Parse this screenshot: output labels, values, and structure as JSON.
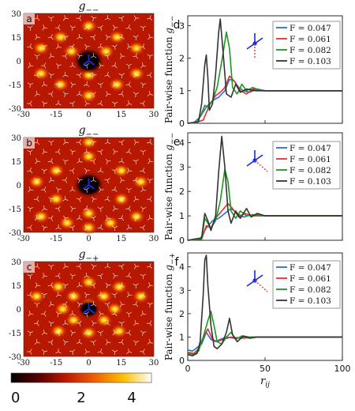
{
  "heatmap_panels": [
    {
      "letter": "a",
      "title": "g−−",
      "variant": "ring"
    },
    {
      "letter": "b",
      "title": "g−−",
      "variant": "hex"
    },
    {
      "letter": "c",
      "title": "g−+",
      "variant": "cross"
    }
  ],
  "heatmap_axis": {
    "x_ticks": [
      "-30",
      "-15",
      "0",
      "15",
      "30"
    ],
    "y_ticks": [
      "30",
      "15",
      "0",
      "-15",
      "-30"
    ]
  },
  "colorbar": {
    "ticks": [
      "0",
      "2",
      "4"
    ],
    "colors": [
      "#000000",
      "#5a0000",
      "#c01a00",
      "#f06000",
      "#ffc000",
      "#ffffff"
    ]
  },
  "chart_data": [
    {
      "type": "line",
      "letter": "d",
      "ylabel": "Pair-wise function g−−",
      "xlabel": "r_ij",
      "xlim": [
        0,
        100
      ],
      "ylim": [
        0,
        3.3
      ],
      "yticks": [
        0,
        1,
        2,
        3
      ],
      "xticks": [
        0,
        50,
        100
      ],
      "series": [
        {
          "name": "F = 0.047",
          "color": "#2b6cd6",
          "points": [
            [
              0,
              0
            ],
            [
              4,
              0.02
            ],
            [
              8,
              0.2
            ],
            [
              12,
              0.5
            ],
            [
              16,
              0.7
            ],
            [
              20,
              0.8
            ],
            [
              24,
              1.0
            ],
            [
              27,
              1.35
            ],
            [
              30,
              1.3
            ],
            [
              33,
              1.1
            ],
            [
              36,
              1.0
            ],
            [
              40,
              0.95
            ],
            [
              45,
              1.05
            ],
            [
              50,
              1.0
            ],
            [
              60,
              1.0
            ],
            [
              80,
              1.0
            ],
            [
              100,
              1.0
            ]
          ]
        },
        {
          "name": "F = 0.061",
          "color": "#e03030",
          "points": [
            [
              0,
              0
            ],
            [
              5,
              0.02
            ],
            [
              10,
              0.1
            ],
            [
              14,
              0.55
            ],
            [
              18,
              0.85
            ],
            [
              21,
              0.95
            ],
            [
              24,
              1.1
            ],
            [
              27,
              1.45
            ],
            [
              30,
              1.3
            ],
            [
              34,
              1.0
            ],
            [
              38,
              0.9
            ],
            [
              42,
              1.05
            ],
            [
              50,
              1.0
            ],
            [
              60,
              1.0
            ],
            [
              80,
              1.0
            ],
            [
              100,
              1.0
            ]
          ]
        },
        {
          "name": "F = 0.082",
          "color": "#1a9a1a",
          "points": [
            [
              0,
              0
            ],
            [
              6,
              0.02
            ],
            [
              9,
              0.3
            ],
            [
              11,
              0.55
            ],
            [
              13,
              0.5
            ],
            [
              16,
              0.7
            ],
            [
              19,
              1.1
            ],
            [
              22,
              1.9
            ],
            [
              25,
              2.8
            ],
            [
              27,
              2.3
            ],
            [
              29,
              1.1
            ],
            [
              32,
              0.9
            ],
            [
              35,
              1.2
            ],
            [
              38,
              1.0
            ],
            [
              42,
              1.1
            ],
            [
              48,
              1.0
            ],
            [
              60,
              1.0
            ],
            [
              80,
              1.0
            ],
            [
              100,
              1.0
            ]
          ]
        },
        {
          "name": "F = 0.103",
          "color": "#333333",
          "points": [
            [
              0,
              0
            ],
            [
              7,
              0.05
            ],
            [
              9,
              0.6
            ],
            [
              11,
              1.8
            ],
            [
              12,
              2.1
            ],
            [
              13,
              1.4
            ],
            [
              14,
              0.4
            ],
            [
              16,
              0.6
            ],
            [
              18,
              1.5
            ],
            [
              20,
              2.8
            ],
            [
              21,
              3.2
            ],
            [
              23,
              2.1
            ],
            [
              25,
              0.9
            ],
            [
              28,
              0.8
            ],
            [
              31,
              1.2
            ],
            [
              34,
              0.95
            ],
            [
              38,
              1.05
            ],
            [
              44,
              1.0
            ],
            [
              60,
              1.0
            ],
            [
              80,
              1.0
            ],
            [
              100,
              1.0
            ]
          ]
        }
      ]
    },
    {
      "type": "line",
      "letter": "e",
      "ylabel": "Pair-wise function g−−",
      "xlabel": "r_ij",
      "xlim": [
        0,
        100
      ],
      "ylim": [
        0,
        4.4
      ],
      "yticks": [
        0,
        1,
        2,
        3,
        4
      ],
      "xticks": [
        0,
        50,
        100
      ],
      "series": [
        {
          "name": "F = 0.047",
          "color": "#2b6cd6",
          "points": [
            [
              0,
              0
            ],
            [
              8,
              0.05
            ],
            [
              12,
              0.5
            ],
            [
              16,
              0.8
            ],
            [
              20,
              0.9
            ],
            [
              24,
              1.1
            ],
            [
              28,
              1.3
            ],
            [
              32,
              1.1
            ],
            [
              36,
              0.95
            ],
            [
              42,
              1.05
            ],
            [
              50,
              1.0
            ],
            [
              60,
              1.0
            ],
            [
              80,
              1.0
            ],
            [
              100,
              1.0
            ]
          ]
        },
        {
          "name": "F = 0.061",
          "color": "#e03030",
          "points": [
            [
              0,
              0
            ],
            [
              9,
              0.05
            ],
            [
              12,
              0.6
            ],
            [
              15,
              0.5
            ],
            [
              18,
              0.9
            ],
            [
              22,
              1.2
            ],
            [
              26,
              1.5
            ],
            [
              29,
              1.3
            ],
            [
              33,
              0.95
            ],
            [
              37,
              1.1
            ],
            [
              42,
              1.0
            ],
            [
              50,
              1.0
            ],
            [
              60,
              1.0
            ],
            [
              80,
              1.0
            ],
            [
              100,
              1.0
            ]
          ]
        },
        {
          "name": "F = 0.082",
          "color": "#1a9a1a",
          "points": [
            [
              0,
              0
            ],
            [
              9,
              0.05
            ],
            [
              11,
              0.9
            ],
            [
              13,
              0.7
            ],
            [
              15,
              0.5
            ],
            [
              18,
              0.8
            ],
            [
              21,
              1.6
            ],
            [
              24,
              2.9
            ],
            [
              26,
              2.4
            ],
            [
              28,
              1.2
            ],
            [
              31,
              0.9
            ],
            [
              34,
              1.2
            ],
            [
              38,
              1.0
            ],
            [
              44,
              1.05
            ],
            [
              50,
              1.0
            ],
            [
              60,
              1.0
            ],
            [
              80,
              1.0
            ],
            [
              100,
              1.0
            ]
          ]
        },
        {
          "name": "F = 0.103",
          "color": "#333333",
          "points": [
            [
              0,
              0
            ],
            [
              9,
              0.1
            ],
            [
              11,
              1.1
            ],
            [
              13,
              0.8
            ],
            [
              15,
              0.4
            ],
            [
              18,
              1.0
            ],
            [
              20,
              2.8
            ],
            [
              22,
              4.25
            ],
            [
              24,
              3.0
            ],
            [
              26,
              1.2
            ],
            [
              28,
              0.7
            ],
            [
              31,
              1.2
            ],
            [
              34,
              0.9
            ],
            [
              38,
              1.3
            ],
            [
              41,
              0.95
            ],
            [
              45,
              1.1
            ],
            [
              50,
              1.0
            ],
            [
              60,
              1.0
            ],
            [
              80,
              1.0
            ],
            [
              100,
              1.0
            ]
          ]
        }
      ]
    },
    {
      "type": "line",
      "letter": "f",
      "ylabel": "Pair-wise function g−+",
      "xlabel": "r_ij",
      "xlim": [
        0,
        100
      ],
      "ylim": [
        0,
        4.6
      ],
      "yticks": [
        0,
        1,
        2,
        3,
        4
      ],
      "xticks": [
        0,
        50,
        100
      ],
      "series": [
        {
          "name": "F = 0.047",
          "color": "#2b6cd6",
          "points": [
            [
              0,
              0.45
            ],
            [
              3,
              0.4
            ],
            [
              6,
              0.55
            ],
            [
              9,
              0.7
            ],
            [
              12,
              1.2
            ],
            [
              15,
              0.9
            ],
            [
              18,
              0.8
            ],
            [
              21,
              0.9
            ],
            [
              25,
              1.0
            ],
            [
              30,
              0.95
            ],
            [
              40,
              1.0
            ],
            [
              60,
              1.0
            ],
            [
              80,
              1.0
            ],
            [
              100,
              1.0
            ]
          ]
        },
        {
          "name": "F = 0.061",
          "color": "#e03030",
          "points": [
            [
              0,
              0.35
            ],
            [
              4,
              0.3
            ],
            [
              7,
              0.5
            ],
            [
              10,
              1.0
            ],
            [
              13,
              1.35
            ],
            [
              16,
              0.9
            ],
            [
              19,
              0.8
            ],
            [
              23,
              0.9
            ],
            [
              28,
              1.0
            ],
            [
              35,
              0.95
            ],
            [
              45,
              1.0
            ],
            [
              60,
              1.0
            ],
            [
              80,
              1.0
            ],
            [
              100,
              1.0
            ]
          ]
        },
        {
          "name": "F = 0.082",
          "color": "#1a9a1a",
          "points": [
            [
              0,
              0.3
            ],
            [
              4,
              0.25
            ],
            [
              7,
              0.4
            ],
            [
              10,
              1.0
            ],
            [
              13,
              1.7
            ],
            [
              15,
              2.1
            ],
            [
              17,
              1.5
            ],
            [
              19,
              0.8
            ],
            [
              22,
              0.7
            ],
            [
              25,
              1.0
            ],
            [
              28,
              1.2
            ],
            [
              31,
              0.9
            ],
            [
              35,
              1.05
            ],
            [
              40,
              1.0
            ],
            [
              60,
              1.0
            ],
            [
              80,
              1.0
            ],
            [
              100,
              1.0
            ]
          ]
        },
        {
          "name": "F = 0.103",
          "color": "#333333",
          "points": [
            [
              0,
              0.25
            ],
            [
              3,
              0.2
            ],
            [
              6,
              0.3
            ],
            [
              8,
              0.8
            ],
            [
              10,
              2.8
            ],
            [
              11,
              4.3
            ],
            [
              12,
              4.5
            ],
            [
              13,
              3.2
            ],
            [
              15,
              1.5
            ],
            [
              17,
              0.6
            ],
            [
              19,
              0.5
            ],
            [
              22,
              0.7
            ],
            [
              25,
              1.2
            ],
            [
              27,
              1.8
            ],
            [
              29,
              1.1
            ],
            [
              32,
              0.8
            ],
            [
              36,
              1.05
            ],
            [
              40,
              0.95
            ],
            [
              45,
              1.0
            ],
            [
              60,
              1.0
            ],
            [
              80,
              1.0
            ],
            [
              100,
              1.0
            ]
          ]
        }
      ]
    }
  ]
}
